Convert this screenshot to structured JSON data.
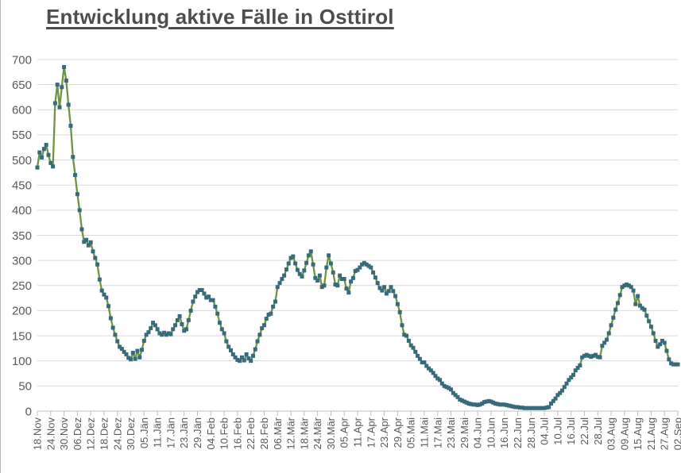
{
  "title": "Entwicklung aktive Fälle in Osttirol",
  "chart_data": {
    "type": "line",
    "title": "Entwicklung aktive Fälle in Osttirol",
    "xlabel": "",
    "ylabel": "",
    "ylim": [
      0,
      700
    ],
    "y_tick_step": 50,
    "y_tick_labels": [
      "0",
      "50",
      "100",
      "150",
      "200",
      "250",
      "300",
      "350",
      "400",
      "450",
      "500",
      "550",
      "600",
      "650",
      "700"
    ],
    "grid": true,
    "legend_position": "none",
    "x_tick_interval_days": 6,
    "x_tick_labels": [
      "18.Nov",
      "24.Nov",
      "30.Nov",
      "06.Dez",
      "12.Dez",
      "18.Dez",
      "24.Dez",
      "30.Dez",
      "05.Jän",
      "11.Jän",
      "17.Jän",
      "23.Jän",
      "29.Jän",
      "04.Feb",
      "10.Feb",
      "16.Feb",
      "22.Feb",
      "28.Feb",
      "06.Mär",
      "12.Mär",
      "18.Mär",
      "24.Mär",
      "30.Mär",
      "05.Apr",
      "11.Apr",
      "17.Apr",
      "23.Apr",
      "29.Apr",
      "05.Mai",
      "11.Mai",
      "17.Mai",
      "23.Mai",
      "29.Mai",
      "04.Jun",
      "10.Jun",
      "16.Jun",
      "22.Jun",
      "28.Jun",
      "04.Jul",
      "10.Jul",
      "16.Jul",
      "22.Jul",
      "28.Jul",
      "03.Aug",
      "09.Aug",
      "15.Aug",
      "21.Aug",
      "27.Aug",
      "02.Sep"
    ],
    "values": [
      485,
      515,
      505,
      522,
      530,
      510,
      494,
      487,
      613,
      650,
      605,
      645,
      685,
      658,
      610,
      568,
      506,
      470,
      432,
      400,
      362,
      337,
      341,
      330,
      336,
      318,
      305,
      292,
      262,
      240,
      232,
      226,
      209,
      185,
      166,
      152,
      139,
      128,
      124,
      118,
      113,
      106,
      103,
      116,
      104,
      120,
      107,
      122,
      140,
      152,
      157,
      165,
      176,
      171,
      163,
      155,
      152,
      156,
      152,
      155,
      153,
      163,
      171,
      181,
      189,
      173,
      160,
      163,
      181,
      200,
      218,
      228,
      237,
      241,
      241,
      234,
      226,
      228,
      221,
      221,
      208,
      194,
      176,
      163,
      155,
      139,
      128,
      121,
      113,
      107,
      102,
      100,
      107,
      101,
      113,
      105,
      100,
      110,
      123,
      139,
      152,
      165,
      171,
      184,
      192,
      194,
      208,
      218,
      247,
      255,
      263,
      270,
      282,
      294,
      305,
      308,
      294,
      281,
      273,
      268,
      280,
      295,
      310,
      318,
      292,
      265,
      260,
      270,
      247,
      250,
      286,
      310,
      294,
      276,
      252,
      250,
      270,
      263,
      263,
      244,
      236,
      258,
      265,
      279,
      281,
      286,
      292,
      295,
      292,
      289,
      286,
      276,
      266,
      255,
      245,
      240,
      247,
      234,
      239,
      247,
      239,
      229,
      213,
      197,
      171,
      152,
      150,
      140,
      131,
      126,
      118,
      110,
      104,
      97,
      97,
      90,
      85,
      81,
      76,
      70,
      65,
      62,
      55,
      50,
      48,
      46,
      43,
      36,
      32,
      28,
      23,
      21,
      19,
      17,
      15,
      14,
      13,
      13,
      12,
      13,
      15,
      18,
      19,
      20,
      19,
      17,
      15,
      14,
      13,
      13,
      13,
      12,
      11,
      10,
      9,
      8,
      8,
      7,
      7,
      6,
      6,
      6,
      6,
      6,
      6,
      6,
      6,
      6,
      6,
      7,
      8,
      15,
      20,
      25,
      32,
      36,
      41,
      48,
      55,
      62,
      67,
      72,
      81,
      86,
      91,
      107,
      110,
      112,
      110,
      108,
      110,
      112,
      108,
      107,
      130,
      136,
      142,
      155,
      171,
      186,
      202,
      215,
      231,
      247,
      250,
      252,
      250,
      247,
      240,
      213,
      229,
      210,
      205,
      202,
      190,
      179,
      168,
      155,
      140,
      128,
      133,
      140,
      136,
      120,
      103,
      95,
      93,
      93,
      93
    ],
    "colors": {
      "line": "#6F9441",
      "marker": "#376B7C",
      "grid": "#D9D9D9",
      "axis": "#BFBFBF",
      "labels": "#595959",
      "title": "#4D4D4D"
    }
  }
}
